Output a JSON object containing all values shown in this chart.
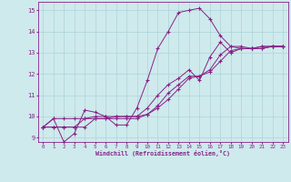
{
  "xlabel": "Windchill (Refroidissement éolien,°C)",
  "bg_color": "#ceeaec",
  "grid_color": "#aed4d8",
  "line_color": "#882288",
  "xlim": [
    -0.5,
    23.5
  ],
  "ylim": [
    8.8,
    15.4
  ],
  "xticks": [
    0,
    1,
    2,
    3,
    4,
    5,
    6,
    7,
    8,
    9,
    10,
    11,
    12,
    13,
    14,
    15,
    16,
    17,
    18,
    19,
    20,
    21,
    22,
    23
  ],
  "yticks": [
    9,
    10,
    11,
    12,
    13,
    14,
    15
  ],
  "series": [
    [
      9.5,
      9.9,
      8.8,
      9.2,
      10.3,
      10.2,
      10.0,
      9.6,
      9.6,
      10.4,
      11.7,
      13.2,
      14.0,
      14.9,
      15.0,
      15.1,
      14.6,
      13.8,
      13.3,
      13.3,
      13.2,
      13.3,
      13.3,
      13.3
    ],
    [
      9.5,
      9.9,
      9.9,
      9.9,
      9.9,
      10.0,
      10.0,
      10.0,
      10.0,
      10.0,
      10.4,
      11.0,
      11.5,
      11.8,
      12.2,
      11.7,
      12.8,
      13.5,
      13.0,
      13.2,
      13.2,
      13.3,
      13.3,
      13.3
    ],
    [
      9.5,
      9.5,
      9.5,
      9.5,
      9.9,
      9.9,
      9.9,
      10.0,
      10.0,
      10.0,
      10.1,
      10.5,
      11.1,
      11.5,
      11.9,
      11.9,
      12.2,
      12.9,
      13.3,
      13.2,
      13.2,
      13.2,
      13.3,
      13.3
    ],
    [
      9.5,
      9.5,
      9.5,
      9.5,
      9.5,
      9.9,
      9.9,
      9.9,
      9.9,
      9.9,
      10.1,
      10.4,
      10.8,
      11.3,
      11.8,
      11.9,
      12.1,
      12.6,
      13.1,
      13.2,
      13.2,
      13.2,
      13.3,
      13.3
    ]
  ]
}
